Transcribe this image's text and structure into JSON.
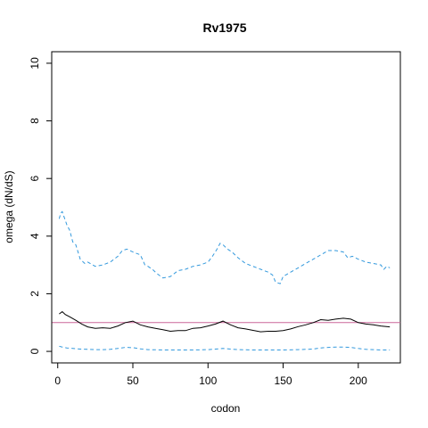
{
  "chart_data": {
    "type": "line",
    "title": "Rv1975",
    "xlabel": "codon",
    "ylabel": "omega (dN/dS)",
    "xlim": [
      -4,
      228
    ],
    "ylim": [
      -0.4,
      10.4
    ],
    "x_ticks": [
      0,
      50,
      100,
      150,
      200
    ],
    "y_ticks": [
      0,
      2,
      4,
      6,
      8,
      10
    ],
    "grid": false,
    "reference_line": {
      "y": 1,
      "color": "#cc6699"
    },
    "series": [
      {
        "style": "solid",
        "color": "#000000",
        "x": [
          1,
          3,
          5,
          8,
          12,
          16,
          20,
          25,
          30,
          35,
          40,
          45,
          50,
          55,
          60,
          65,
          70,
          75,
          80,
          85,
          90,
          95,
          100,
          105,
          110,
          115,
          120,
          125,
          130,
          135,
          140,
          145,
          150,
          155,
          160,
          165,
          170,
          175,
          180,
          185,
          190,
          195,
          200,
          205,
          210,
          215,
          221
        ],
        "y": [
          1.3,
          1.38,
          1.28,
          1.2,
          1.08,
          0.95,
          0.85,
          0.8,
          0.82,
          0.8,
          0.88,
          1.0,
          1.05,
          0.92,
          0.85,
          0.8,
          0.75,
          0.7,
          0.72,
          0.72,
          0.8,
          0.82,
          0.88,
          0.95,
          1.05,
          0.92,
          0.82,
          0.78,
          0.73,
          0.68,
          0.7,
          0.7,
          0.72,
          0.78,
          0.86,
          0.92,
          1.0,
          1.1,
          1.08,
          1.12,
          1.15,
          1.12,
          1.0,
          0.95,
          0.92,
          0.88,
          0.85
        ]
      },
      {
        "style": "dashed",
        "color": "#3399dd",
        "x": [
          1,
          2,
          3,
          4,
          6,
          8,
          10,
          12,
          15,
          18,
          20,
          25,
          30,
          35,
          40,
          43,
          46,
          50,
          55,
          58,
          60,
          63,
          66,
          70,
          75,
          80,
          85,
          90,
          95,
          100,
          103,
          106,
          108,
          110,
          113,
          116,
          120,
          125,
          130,
          135,
          140,
          143,
          145,
          148,
          150,
          155,
          160,
          165,
          170,
          175,
          180,
          185,
          190,
          193,
          196,
          200,
          205,
          210,
          215,
          217,
          219,
          221
        ],
        "y": [
          4.6,
          4.8,
          4.85,
          4.7,
          4.4,
          4.2,
          3.8,
          3.7,
          3.2,
          3.05,
          3.1,
          2.95,
          3.0,
          3.1,
          3.3,
          3.5,
          3.55,
          3.45,
          3.35,
          3.0,
          2.95,
          2.85,
          2.7,
          2.55,
          2.6,
          2.8,
          2.85,
          2.95,
          3.0,
          3.1,
          3.3,
          3.55,
          3.75,
          3.7,
          3.55,
          3.45,
          3.25,
          3.05,
          2.95,
          2.85,
          2.75,
          2.65,
          2.4,
          2.35,
          2.6,
          2.75,
          2.9,
          3.05,
          3.2,
          3.35,
          3.5,
          3.5,
          3.45,
          3.25,
          3.3,
          3.2,
          3.1,
          3.05,
          3.0,
          2.85,
          2.95,
          2.9
        ]
      },
      {
        "style": "dashed",
        "color": "#3399dd",
        "x": [
          1,
          3,
          6,
          10,
          15,
          20,
          25,
          30,
          35,
          40,
          45,
          50,
          55,
          60,
          70,
          80,
          90,
          100,
          105,
          110,
          115,
          120,
          130,
          140,
          150,
          160,
          170,
          175,
          180,
          185,
          190,
          195,
          200,
          205,
          210,
          215,
          221
        ],
        "y": [
          0.18,
          0.15,
          0.12,
          0.1,
          0.08,
          0.07,
          0.06,
          0.06,
          0.07,
          0.1,
          0.14,
          0.13,
          0.09,
          0.06,
          0.05,
          0.05,
          0.05,
          0.06,
          0.08,
          0.1,
          0.08,
          0.06,
          0.05,
          0.05,
          0.05,
          0.06,
          0.08,
          0.12,
          0.14,
          0.15,
          0.15,
          0.14,
          0.1,
          0.07,
          0.06,
          0.05,
          0.05
        ]
      }
    ]
  }
}
